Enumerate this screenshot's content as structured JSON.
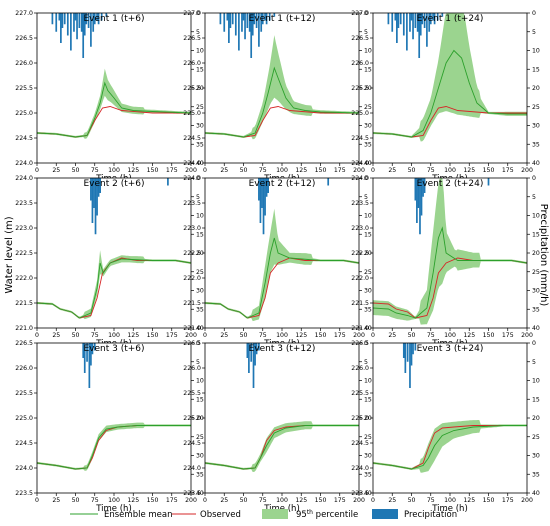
{
  "figure": {
    "ylabel_left": "Water level (m)",
    "ylabel_right": "Precipitation (mm/h)",
    "xlabel": "Time (h)"
  },
  "legend": {
    "placement": "bottom",
    "ensemble": "Ensemble mean",
    "observed": "Observed",
    "percentile_prefix": "95",
    "percentile_sup": "th",
    "percentile_suffix": " percentile",
    "precip": "Precipitation"
  },
  "colors": {
    "ensemble": "#2ca02c",
    "observed": "#d62728",
    "band": "#9bd48f",
    "precip": "#1f77b4"
  },
  "chart_data": [
    {
      "type": "line",
      "title": "Event 1 (t+6)",
      "xlim": [
        0,
        200
      ],
      "ylim": [
        224.0,
        227.0
      ],
      "yticks": [
        224.0,
        224.5,
        225.0,
        225.5,
        226.0,
        226.5,
        227.0
      ],
      "precip_ticks": [
        0,
        5,
        10,
        15,
        20,
        25,
        30,
        35,
        40
      ],
      "band_scale": 0.5,
      "observed": [
        [
          0,
          224.6
        ],
        [
          25,
          224.58
        ],
        [
          50,
          224.52
        ],
        [
          65,
          224.55
        ],
        [
          75,
          224.85
        ],
        [
          85,
          225.1
        ],
        [
          95,
          225.13
        ],
        [
          110,
          225.05
        ],
        [
          150,
          225.0
        ],
        [
          200,
          225.0
        ]
      ],
      "ensemble": [
        [
          0,
          224.6
        ],
        [
          25,
          224.58
        ],
        [
          50,
          224.52
        ],
        [
          65,
          224.55
        ],
        [
          75,
          224.9
        ],
        [
          82,
          225.2
        ],
        [
          88,
          225.6
        ],
        [
          92,
          225.45
        ],
        [
          100,
          225.3
        ],
        [
          110,
          225.1
        ],
        [
          125,
          225.05
        ],
        [
          150,
          225.03
        ],
        [
          200,
          225.0
        ]
      ],
      "precip_x": [
        20,
        25,
        29,
        31,
        33,
        36,
        40,
        44,
        48,
        50,
        52,
        55,
        58,
        60,
        62,
        64,
        67,
        70,
        73,
        75,
        78,
        80,
        84,
        90
      ],
      "precip_v": [
        3,
        5,
        2,
        8,
        4,
        3,
        6,
        10,
        5,
        2,
        7,
        4,
        5,
        12,
        6,
        3,
        4,
        9,
        5,
        3,
        2,
        3,
        2,
        1
      ]
    },
    {
      "type": "line",
      "title": "Event 1 (t+12)",
      "xlim": [
        0,
        200
      ],
      "ylim": [
        224.0,
        227.0
      ],
      "yticks": [
        224.0,
        224.5,
        225.0,
        225.5,
        226.0,
        226.5,
        227.0
      ],
      "precip_ticks": [
        0,
        5,
        10,
        15,
        20,
        25,
        30,
        35,
        40
      ],
      "band_scale": 0.8,
      "observed": [
        [
          0,
          224.6
        ],
        [
          25,
          224.58
        ],
        [
          50,
          224.52
        ],
        [
          65,
          224.55
        ],
        [
          75,
          224.85
        ],
        [
          85,
          225.1
        ],
        [
          95,
          225.13
        ],
        [
          110,
          225.05
        ],
        [
          150,
          225.0
        ],
        [
          200,
          225.0
        ]
      ],
      "ensemble": [
        [
          0,
          224.6
        ],
        [
          25,
          224.58
        ],
        [
          50,
          224.52
        ],
        [
          65,
          224.6
        ],
        [
          75,
          225.0
        ],
        [
          82,
          225.4
        ],
        [
          90,
          225.9
        ],
        [
          95,
          225.7
        ],
        [
          105,
          225.3
        ],
        [
          115,
          225.1
        ],
        [
          130,
          225.05
        ],
        [
          150,
          225.02
        ],
        [
          200,
          225.0
        ]
      ],
      "precip_x": [
        20,
        25,
        29,
        31,
        33,
        36,
        40,
        44,
        48,
        50,
        52,
        55,
        58,
        60,
        62,
        64,
        67,
        70,
        73,
        75,
        78,
        80,
        84,
        90
      ],
      "precip_v": [
        3,
        5,
        2,
        8,
        4,
        3,
        6,
        10,
        5,
        2,
        7,
        4,
        5,
        12,
        6,
        3,
        4,
        9,
        5,
        3,
        2,
        3,
        2,
        1
      ]
    },
    {
      "type": "line",
      "title": "Event 1 (t+24)",
      "xlim": [
        0,
        200
      ],
      "ylim": [
        224.0,
        227.0
      ],
      "yticks": [
        224.0,
        224.5,
        225.0,
        225.5,
        226.0,
        226.5,
        227.0
      ],
      "precip_ticks": [
        0,
        5,
        10,
        15,
        20,
        25,
        30,
        35,
        40
      ],
      "band_scale": 1.2,
      "observed": [
        [
          0,
          224.6
        ],
        [
          25,
          224.58
        ],
        [
          50,
          224.52
        ],
        [
          65,
          224.55
        ],
        [
          75,
          224.85
        ],
        [
          85,
          225.1
        ],
        [
          95,
          225.13
        ],
        [
          110,
          225.05
        ],
        [
          150,
          225.0
        ],
        [
          200,
          225.0
        ]
      ],
      "ensemble": [
        [
          0,
          224.6
        ],
        [
          25,
          224.58
        ],
        [
          50,
          224.52
        ],
        [
          65,
          224.65
        ],
        [
          75,
          225.0
        ],
        [
          85,
          225.5
        ],
        [
          95,
          226.0
        ],
        [
          105,
          226.25
        ],
        [
          115,
          226.1
        ],
        [
          125,
          225.6
        ],
        [
          135,
          225.2
        ],
        [
          150,
          225.0
        ],
        [
          175,
          224.98
        ],
        [
          200,
          224.98
        ]
      ],
      "precip_x": [
        20,
        25,
        29,
        31,
        33,
        36,
        40,
        44,
        48,
        50,
        52,
        55,
        58,
        60,
        62,
        64,
        67,
        70,
        73,
        75,
        78,
        80,
        84,
        90
      ],
      "precip_v": [
        3,
        5,
        2,
        8,
        4,
        3,
        6,
        10,
        5,
        2,
        7,
        4,
        5,
        12,
        6,
        3,
        4,
        9,
        5,
        3,
        2,
        3,
        2,
        1
      ]
    },
    {
      "type": "line",
      "title": "Event 2 (t+6)",
      "xlim": [
        0,
        200
      ],
      "ylim": [
        221.0,
        224.0
      ],
      "yticks": [
        221.0,
        221.5,
        222.0,
        222.5,
        223.0,
        223.5,
        224.0
      ],
      "precip_ticks": [
        0,
        5,
        10,
        15,
        20,
        25,
        30,
        35,
        40
      ],
      "band_scale": 0.5,
      "observed": [
        [
          0,
          221.5
        ],
        [
          20,
          221.48
        ],
        [
          30,
          221.38
        ],
        [
          45,
          221.32
        ],
        [
          55,
          221.2
        ],
        [
          70,
          221.25
        ],
        [
          78,
          221.6
        ],
        [
          85,
          222.1
        ],
        [
          95,
          222.3
        ],
        [
          110,
          222.4
        ],
        [
          130,
          222.35
        ],
        [
          150,
          222.35
        ],
        [
          180,
          222.35
        ],
        [
          200,
          222.3
        ]
      ],
      "ensemble": [
        [
          0,
          221.5
        ],
        [
          20,
          221.48
        ],
        [
          30,
          221.38
        ],
        [
          45,
          221.32
        ],
        [
          55,
          221.2
        ],
        [
          70,
          221.3
        ],
        [
          78,
          221.8
        ],
        [
          82,
          222.3
        ],
        [
          86,
          222.1
        ],
        [
          95,
          222.3
        ],
        [
          110,
          222.38
        ],
        [
          150,
          222.35
        ],
        [
          180,
          222.35
        ],
        [
          200,
          222.3
        ]
      ],
      "precip_x": [
        70,
        72,
        74,
        76,
        78,
        80,
        82,
        170
      ],
      "precip_v": [
        6,
        12,
        8,
        15,
        10,
        5,
        4,
        2
      ]
    },
    {
      "type": "line",
      "title": "Event 2 (t+12)",
      "xlim": [
        0,
        200
      ],
      "ylim": [
        221.0,
        224.0
      ],
      "yticks": [
        221.0,
        221.5,
        222.0,
        222.5,
        223.0,
        223.5,
        224.0
      ],
      "precip_ticks": [
        0,
        5,
        10,
        15,
        20,
        25,
        30,
        35,
        40
      ],
      "band_scale": 0.9,
      "observed": [
        [
          0,
          221.5
        ],
        [
          20,
          221.48
        ],
        [
          30,
          221.38
        ],
        [
          45,
          221.32
        ],
        [
          55,
          221.2
        ],
        [
          70,
          221.25
        ],
        [
          78,
          221.6
        ],
        [
          85,
          222.1
        ],
        [
          95,
          222.3
        ],
        [
          110,
          222.4
        ],
        [
          130,
          222.35
        ],
        [
          150,
          222.35
        ],
        [
          180,
          222.35
        ],
        [
          200,
          222.3
        ]
      ],
      "ensemble": [
        [
          0,
          221.5
        ],
        [
          20,
          221.48
        ],
        [
          30,
          221.38
        ],
        [
          45,
          221.32
        ],
        [
          55,
          221.2
        ],
        [
          70,
          221.3
        ],
        [
          78,
          221.9
        ],
        [
          85,
          222.5
        ],
        [
          90,
          222.8
        ],
        [
          95,
          222.5
        ],
        [
          110,
          222.4
        ],
        [
          150,
          222.35
        ],
        [
          180,
          222.35
        ],
        [
          200,
          222.3
        ]
      ],
      "precip_x": [
        70,
        72,
        74,
        76,
        78,
        80,
        82,
        160
      ],
      "precip_v": [
        6,
        12,
        8,
        15,
        10,
        5,
        4,
        2
      ]
    },
    {
      "type": "line",
      "title": "Event 2 (t+24)",
      "xlim": [
        0,
        200
      ],
      "ylim": [
        221.0,
        224.0
      ],
      "yticks": [
        221.0,
        221.5,
        222.0,
        222.5,
        223.0,
        223.5,
        224.0
      ],
      "precip_ticks": [
        0,
        5,
        10,
        15,
        20,
        25,
        30,
        35,
        40
      ],
      "band_scale": 1.5,
      "observed": [
        [
          0,
          221.5
        ],
        [
          20,
          221.48
        ],
        [
          30,
          221.38
        ],
        [
          45,
          221.32
        ],
        [
          55,
          221.2
        ],
        [
          70,
          221.25
        ],
        [
          78,
          221.6
        ],
        [
          85,
          222.1
        ],
        [
          95,
          222.3
        ],
        [
          110,
          222.4
        ],
        [
          130,
          222.35
        ],
        [
          150,
          222.35
        ],
        [
          180,
          222.35
        ],
        [
          200,
          222.3
        ]
      ],
      "ensemble": [
        [
          0,
          221.4
        ],
        [
          20,
          221.38
        ],
        [
          30,
          221.3
        ],
        [
          45,
          221.25
        ],
        [
          55,
          221.2
        ],
        [
          70,
          221.4
        ],
        [
          78,
          222.1
        ],
        [
          85,
          222.8
        ],
        [
          90,
          223.0
        ],
        [
          95,
          222.5
        ],
        [
          110,
          222.35
        ],
        [
          150,
          222.35
        ],
        [
          180,
          222.35
        ],
        [
          200,
          222.3
        ]
      ],
      "precip_x": [
        55,
        57,
        59,
        61,
        63,
        65,
        67,
        150
      ],
      "precip_v": [
        6,
        12,
        8,
        15,
        10,
        5,
        4,
        2
      ]
    },
    {
      "type": "line",
      "title": "Event 3 (t+6)",
      "xlim": [
        0,
        200
      ],
      "ylim": [
        223.5,
        226.5
      ],
      "yticks": [
        223.5,
        224.0,
        224.5,
        225.0,
        225.5,
        226.0,
        226.5
      ],
      "precip_ticks": [
        0,
        5,
        10,
        15,
        20,
        25,
        30,
        35,
        40
      ],
      "band_scale": 0.4,
      "observed": [
        [
          0,
          224.1
        ],
        [
          25,
          224.05
        ],
        [
          50,
          223.98
        ],
        [
          65,
          224.0
        ],
        [
          72,
          224.2
        ],
        [
          80,
          224.55
        ],
        [
          90,
          224.75
        ],
        [
          105,
          224.82
        ],
        [
          130,
          224.85
        ],
        [
          170,
          224.85
        ],
        [
          200,
          224.85
        ]
      ],
      "ensemble": [
        [
          0,
          224.1
        ],
        [
          25,
          224.05
        ],
        [
          50,
          223.98
        ],
        [
          65,
          224.0
        ],
        [
          72,
          224.25
        ],
        [
          80,
          224.6
        ],
        [
          90,
          224.78
        ],
        [
          105,
          224.82
        ],
        [
          130,
          224.85
        ],
        [
          170,
          224.85
        ],
        [
          200,
          224.85
        ]
      ],
      "precip_x": [
        60,
        62,
        65,
        68,
        70,
        72,
        75
      ],
      "precip_v": [
        4,
        8,
        5,
        12,
        6,
        3,
        2
      ]
    },
    {
      "type": "line",
      "title": "Event 3 (t+12)",
      "xlim": [
        0,
        200
      ],
      "ylim": [
        223.5,
        226.5
      ],
      "yticks": [
        223.5,
        224.0,
        224.5,
        225.0,
        225.5,
        226.0,
        226.5
      ],
      "precip_ticks": [
        0,
        5,
        10,
        15,
        20,
        25,
        30,
        35,
        40
      ],
      "band_scale": 0.7,
      "observed": [
        [
          0,
          224.1
        ],
        [
          25,
          224.05
        ],
        [
          50,
          223.98
        ],
        [
          65,
          224.0
        ],
        [
          72,
          224.2
        ],
        [
          80,
          224.55
        ],
        [
          90,
          224.75
        ],
        [
          105,
          224.82
        ],
        [
          130,
          224.85
        ],
        [
          170,
          224.85
        ],
        [
          200,
          224.85
        ]
      ],
      "ensemble": [
        [
          0,
          224.1
        ],
        [
          25,
          224.05
        ],
        [
          50,
          223.98
        ],
        [
          65,
          224.0
        ],
        [
          72,
          224.2
        ],
        [
          80,
          224.45
        ],
        [
          90,
          224.7
        ],
        [
          105,
          224.8
        ],
        [
          130,
          224.85
        ],
        [
          170,
          224.85
        ],
        [
          200,
          224.85
        ]
      ],
      "precip_x": [
        55,
        57,
        60,
        63,
        65,
        67,
        70
      ],
      "precip_v": [
        4,
        8,
        5,
        12,
        6,
        3,
        2
      ]
    },
    {
      "type": "line",
      "title": "Event 3 (t+24)",
      "xlim": [
        0,
        200
      ],
      "ylim": [
        223.5,
        226.5
      ],
      "yticks": [
        223.5,
        224.0,
        224.5,
        225.0,
        225.5,
        226.0,
        226.5
      ],
      "precip_ticks": [
        0,
        5,
        10,
        15,
        20,
        25,
        30,
        35,
        40
      ],
      "band_scale": 1.0,
      "observed": [
        [
          0,
          224.1
        ],
        [
          25,
          224.05
        ],
        [
          50,
          223.98
        ],
        [
          65,
          224.1
        ],
        [
          72,
          224.4
        ],
        [
          80,
          224.7
        ],
        [
          90,
          224.8
        ],
        [
          105,
          224.82
        ],
        [
          130,
          224.85
        ],
        [
          170,
          224.85
        ],
        [
          200,
          224.85
        ]
      ],
      "ensemble": [
        [
          0,
          224.1
        ],
        [
          25,
          224.05
        ],
        [
          50,
          223.98
        ],
        [
          65,
          224.05
        ],
        [
          72,
          224.2
        ],
        [
          80,
          224.45
        ],
        [
          90,
          224.65
        ],
        [
          105,
          224.75
        ],
        [
          130,
          224.82
        ],
        [
          170,
          224.85
        ],
        [
          200,
          224.85
        ]
      ],
      "precip_x": [
        40,
        42,
        45,
        48,
        50,
        52,
        55
      ],
      "precip_v": [
        4,
        8,
        5,
        12,
        6,
        3,
        2
      ]
    }
  ]
}
